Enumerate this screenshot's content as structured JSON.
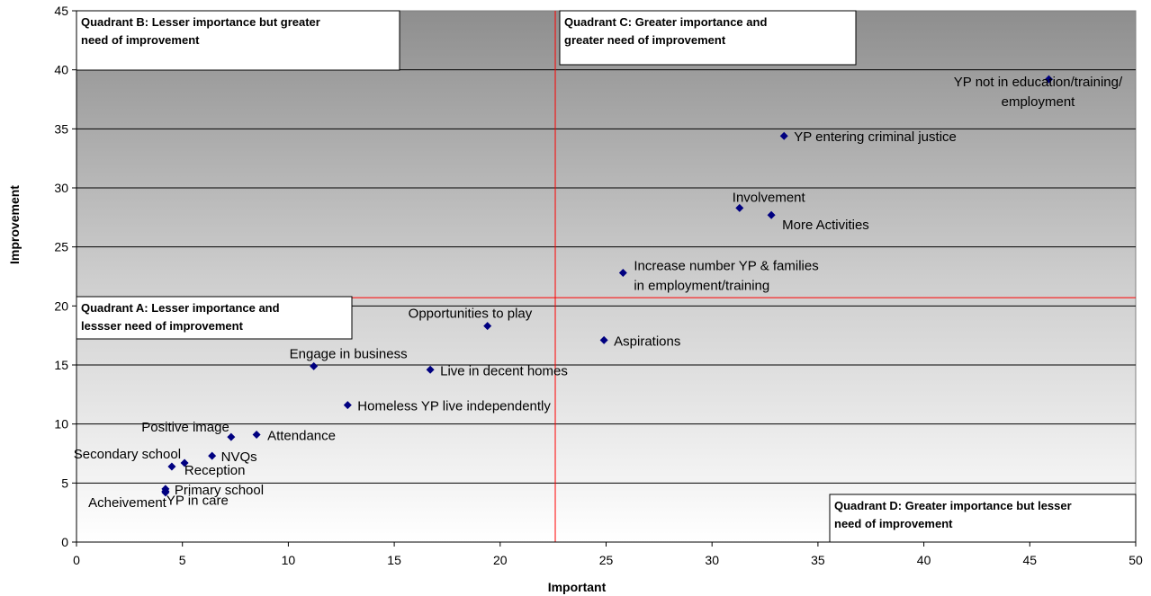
{
  "chart_data": {
    "type": "scatter",
    "xlabel": "Important",
    "ylabel": "Improvement",
    "xlim": [
      0,
      50
    ],
    "ylim": [
      0,
      45
    ],
    "x_ticks": [
      0,
      5,
      10,
      15,
      20,
      25,
      30,
      35,
      40,
      45,
      50
    ],
    "y_ticks": [
      0,
      5,
      10,
      15,
      20,
      25,
      30,
      35,
      40,
      45
    ],
    "grid": "horizontal",
    "background": "vertical gradient, dark gray at top to white at bottom",
    "marker": "diamond",
    "marker_color": "#000080",
    "divider_color": "#ff0000",
    "divider_x": 22.6,
    "divider_y": 20.7,
    "points": [
      {
        "label": "YP not in education/training/ employment",
        "lines": [
          "YP not in education/training/",
          "employment"
        ],
        "x": 45.9,
        "y": 39.2
      },
      {
        "label": "YP entering criminal justice",
        "lines": [
          "YP entering criminal justice"
        ],
        "x": 33.4,
        "y": 34.4
      },
      {
        "label": "Involvement",
        "lines": [
          "Involvement"
        ],
        "x": 31.3,
        "y": 28.3
      },
      {
        "label": "More Activities",
        "lines": [
          "More Activities"
        ],
        "x": 32.8,
        "y": 27.7
      },
      {
        "label": "Increase number YP & families in employment/training",
        "lines": [
          "Increase number YP & families",
          "in employment/training"
        ],
        "x": 25.8,
        "y": 22.8
      },
      {
        "label": "Opportunities to play",
        "lines": [
          "Opportunities to play"
        ],
        "x": 19.4,
        "y": 18.3
      },
      {
        "label": "Aspirations",
        "lines": [
          "Aspirations"
        ],
        "x": 24.9,
        "y": 17.1
      },
      {
        "label": "Engage in business",
        "lines": [
          "Engage in business"
        ],
        "x": 11.2,
        "y": 14.9
      },
      {
        "label": "Live in decent homes",
        "lines": [
          "Live in decent homes"
        ],
        "x": 16.7,
        "y": 14.6
      },
      {
        "label": "Homeless YP live independently",
        "lines": [
          "Homeless YP live independently"
        ],
        "x": 12.8,
        "y": 11.6
      },
      {
        "label": "Positive image",
        "lines": [
          "Positive image"
        ],
        "x": 7.3,
        "y": 8.9
      },
      {
        "label": "Attendance",
        "lines": [
          "Attendance"
        ],
        "x": 8.5,
        "y": 9.1
      },
      {
        "label": "NVQs",
        "lines": [
          "NVQs"
        ],
        "x": 6.4,
        "y": 7.3
      },
      {
        "label": "Secondary school",
        "lines": [
          "Secondary school"
        ],
        "x": 5.1,
        "y": 6.7
      },
      {
        "label": "Reception",
        "lines": [
          "Reception"
        ],
        "x": 4.5,
        "y": 6.4
      },
      {
        "label": "Primary school",
        "lines": [
          "Primary school"
        ],
        "x": 4.2,
        "y": 4.5
      },
      {
        "label": "Acheivement",
        "lines": [
          "Acheivement"
        ],
        "x": 4.2,
        "y": 4.2
      },
      {
        "label": "YP in care",
        "lines": [
          "YP in care"
        ],
        "x": 4.2,
        "y": 4.3
      }
    ],
    "quadrants": [
      {
        "name": "Quadrant B",
        "lines": [
          "Quadrant B: Lesser importance but greater",
          "need of improvement"
        ]
      },
      {
        "name": "Quadrant C",
        "lines": [
          "Quadrant C: Greater importance and",
          "greater need of improvement"
        ]
      },
      {
        "name": "Quadrant A",
        "lines": [
          "Quadrant A: Lesser importance and",
          "lessser need of improvement"
        ]
      },
      {
        "name": "Quadrant D",
        "lines": [
          "Quadrant D: Greater importance but lesser",
          "need of improvement"
        ]
      }
    ]
  }
}
